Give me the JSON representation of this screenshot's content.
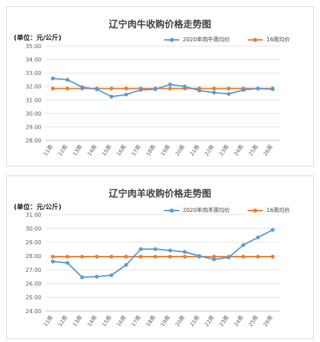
{
  "chart_data": [
    {
      "type": "line",
      "title": "辽宁肉牛收购价格走势图",
      "unit_label": "(单位：元/公斤)",
      "categories": [
        "11周",
        "12周",
        "13周",
        "14周",
        "15周",
        "16周",
        "17周",
        "18周",
        "19周",
        "20周",
        "21周",
        "22周",
        "23周",
        "24周",
        "25周",
        "26周"
      ],
      "series": [
        {
          "name": "2020年肉牛周均价",
          "color": "#5b9bd5",
          "values": [
            32.6,
            32.5,
            31.95,
            31.8,
            31.25,
            31.4,
            31.75,
            31.8,
            32.15,
            32.0,
            31.7,
            31.55,
            31.45,
            31.75,
            31.85,
            31.8
          ]
        },
        {
          "name": "16周均价",
          "color": "#ed7d31",
          "values": [
            31.85,
            31.85,
            31.85,
            31.85,
            31.85,
            31.85,
            31.85,
            31.85,
            31.85,
            31.85,
            31.85,
            31.85,
            31.85,
            31.85,
            31.85,
            31.85
          ]
        }
      ],
      "ylim": [
        28,
        35
      ],
      "yticks": [
        "35.00",
        "34.00",
        "33.00",
        "32.00",
        "31.00",
        "30.00",
        "29.00",
        "28.00"
      ],
      "grid": true,
      "legend": "top-right"
    },
    {
      "type": "line",
      "title": "辽宁肉羊收购价格走势图",
      "unit_label": "(单位：元/公斤)",
      "categories": [
        "11周",
        "12周",
        "13周",
        "14周",
        "15周",
        "16周",
        "17周",
        "18周",
        "19周",
        "20周",
        "21周",
        "22周",
        "23周",
        "24周",
        "25周",
        "26周"
      ],
      "series": [
        {
          "name": "2020年肉羊周均价",
          "color": "#5b9bd5",
          "values": [
            27.6,
            27.5,
            26.45,
            26.5,
            26.6,
            27.35,
            28.5,
            28.5,
            28.4,
            28.3,
            28.0,
            27.75,
            27.9,
            28.8,
            29.35,
            29.9
          ]
        },
        {
          "name": "16周均价",
          "color": "#ed7d31",
          "values": [
            27.95,
            27.95,
            27.95,
            27.95,
            27.95,
            27.95,
            27.95,
            27.95,
            27.95,
            27.95,
            27.95,
            27.95,
            27.95,
            27.95,
            27.95,
            27.95
          ]
        }
      ],
      "ylim": [
        24,
        31
      ],
      "yticks": [
        "31.00",
        "30.00",
        "29.00",
        "28.00",
        "27.00",
        "26.00",
        "25.00",
        "24.00"
      ],
      "grid": true,
      "legend": "top-right"
    }
  ]
}
